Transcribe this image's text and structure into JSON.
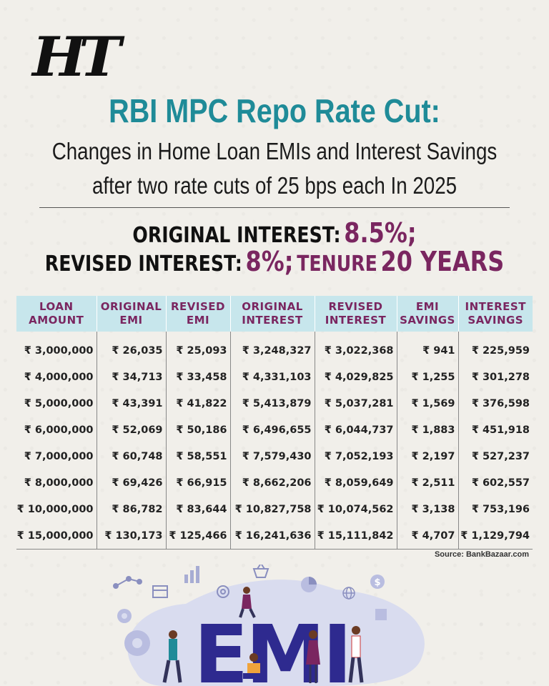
{
  "logo": "HT",
  "title": "RBI MPC Repo Rate Cut:",
  "subtitle_line1": "Changes in Home Loan EMIs and Interest Savings",
  "subtitle_line2": "after two rate cuts of 25 bps each In 2025",
  "rates": {
    "original_label": "ORIGINAL INTEREST:",
    "original_value": "8.5%;",
    "revised_label": "REVISED INTEREST:",
    "revised_value": "8%;",
    "tenure_label": "TENURE",
    "tenure_value": "20 YEARS"
  },
  "table": {
    "headers": [
      [
        "LOAN",
        "AMOUNT"
      ],
      [
        "ORIGINAL",
        "EMI"
      ],
      [
        "REVISED",
        "EMI"
      ],
      [
        "ORIGINAL",
        "INTEREST"
      ],
      [
        "REVISED",
        "INTEREST"
      ],
      [
        "EMI",
        "SAVINGS"
      ],
      [
        "INTEREST",
        "SAVINGS"
      ]
    ],
    "rows": [
      [
        "₹ 3,000,000",
        "₹ 26,035",
        "₹ 25,093",
        "₹ 3,248,327",
        "₹ 3,022,368",
        "₹ 941",
        "₹ 225,959"
      ],
      [
        "₹ 4,000,000",
        "₹ 34,713",
        "₹ 33,458",
        "₹ 4,331,103",
        "₹ 4,029,825",
        "₹ 1,255",
        "₹ 301,278"
      ],
      [
        "₹ 5,000,000",
        "₹ 43,391",
        "₹ 41,822",
        "₹ 5,413,879",
        "₹ 5,037,281",
        "₹ 1,569",
        "₹ 376,598"
      ],
      [
        "₹ 6,000,000",
        "₹ 52,069",
        "₹ 50,186",
        "₹ 6,496,655",
        "₹ 6,044,737",
        "₹ 1,883",
        "₹ 451,918"
      ],
      [
        "₹ 7,000,000",
        "₹ 60,748",
        "₹ 58,551",
        "₹ 7,579,430",
        "₹ 7,052,193",
        "₹ 2,197",
        "₹ 527,237"
      ],
      [
        "₹ 8,000,000",
        "₹ 69,426",
        "₹ 66,915",
        "₹ 8,662,206",
        "₹ 8,059,649",
        "₹ 2,511",
        "₹ 602,557"
      ],
      [
        "₹ 10,000,000",
        "₹ 86,782",
        "₹ 83,644",
        "₹ 10,827,758",
        "₹ 10,074,562",
        "₹ 3,138",
        "₹ 753,196"
      ],
      [
        "₹ 15,000,000",
        "₹ 130,173",
        "₹ 125,466",
        "₹ 16,241,636",
        "₹ 15,111,842",
        "₹ 4,707",
        "₹ 1,129,794"
      ]
    ]
  },
  "source": "Source: BankBazaar.com",
  "illustration": {
    "word": "EMI",
    "colors": {
      "letters": "#2e2a8f",
      "blob": "#d9dcef",
      "accent": "#7a2660",
      "teal": "#1f8b98"
    },
    "icons": [
      "line-chart-icon",
      "bar-chart-icon",
      "shopping-basket-icon",
      "pie-chart-icon",
      "dollar-coin-icon",
      "calendar-icon",
      "target-icon",
      "globe-icon",
      "gear-icon"
    ]
  }
}
